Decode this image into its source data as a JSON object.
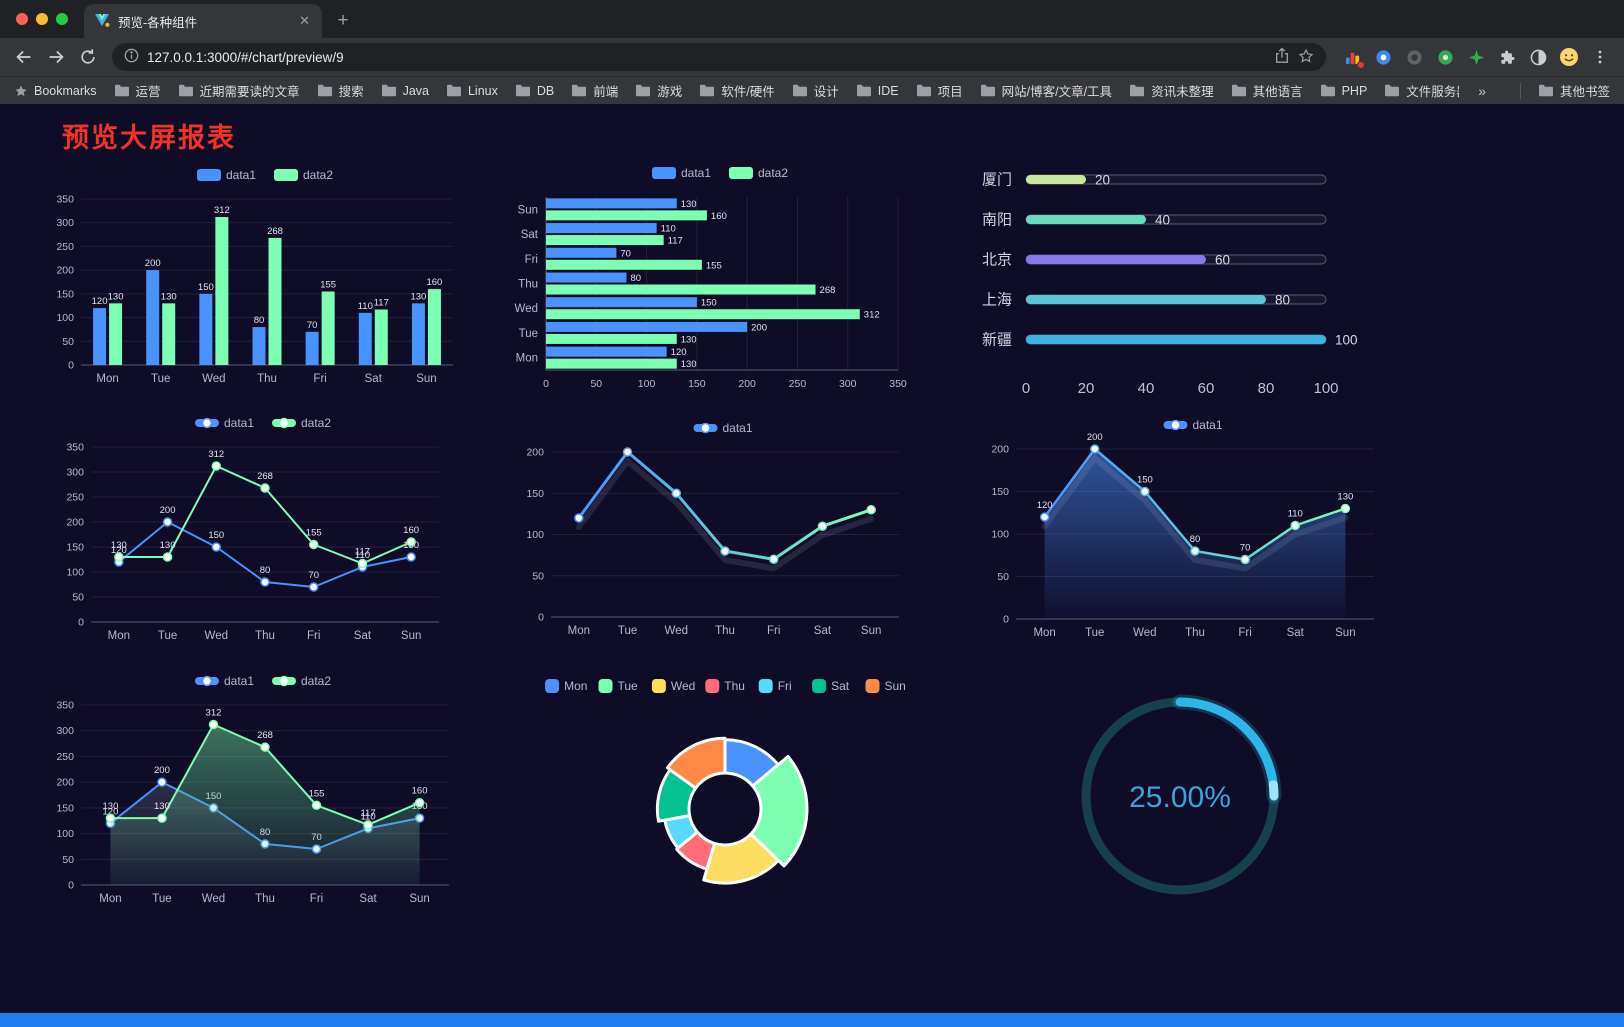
{
  "browser": {
    "tab_title": "预览-各种组件",
    "url": "127.0.0.1:3000/#/chart/preview/9",
    "traffic_lights": [
      "#ff5f57",
      "#febc2e",
      "#28c840"
    ],
    "icons": {
      "close": "✕",
      "new_tab": "+",
      "menu": "⋮"
    },
    "bookmarks_bar": {
      "first_item": "Bookmarks",
      "folders": [
        "运营",
        "近期需要读的文章",
        "搜索",
        "Java",
        "Linux",
        "DB",
        "前端",
        "游戏",
        "软件/硬件",
        "设计",
        "IDE",
        "项目",
        "网站/博客/文章/工具",
        "资讯未整理",
        "其他语言",
        "PHP",
        "文件服务器"
      ],
      "overflow": "»",
      "other": "其他书签"
    }
  },
  "page": {
    "title": "预览大屏报表",
    "title_color": "#f03328",
    "background": "#0f0c27",
    "bottom_bar_color": "#2080f0"
  },
  "chart_data": [
    {
      "type": "bar",
      "categories": [
        "Mon",
        "Tue",
        "Wed",
        "Thu",
        "Fri",
        "Sat",
        "Sun"
      ],
      "series": [
        {
          "name": "data1",
          "color": "#4992ff",
          "values": [
            120,
            200,
            150,
            80,
            70,
            110,
            130
          ]
        },
        {
          "name": "data2",
          "color": "#7cffb2",
          "values": [
            130,
            130,
            312,
            268,
            155,
            117,
            160
          ]
        }
      ],
      "ylim": [
        0,
        350
      ],
      "ytick": 50,
      "value_labels": true,
      "legend_position": "top"
    },
    {
      "type": "bar-horizontal",
      "categories": [
        "Mon",
        "Tue",
        "Wed",
        "Thu",
        "Fri",
        "Sat",
        "Sun"
      ],
      "series": [
        {
          "name": "data1",
          "color": "#4992ff",
          "values": [
            120,
            200,
            150,
            80,
            70,
            110,
            130
          ]
        },
        {
          "name": "data2",
          "color": "#7cffb2",
          "values": [
            130,
            130,
            312,
            268,
            155,
            117,
            160
          ]
        }
      ],
      "xlim": [
        0,
        350
      ],
      "xtick": 50,
      "value_labels": true,
      "legend_position": "top"
    },
    {
      "type": "progress",
      "max": 100,
      "xticks": [
        0,
        20,
        40,
        60,
        80,
        100
      ],
      "rows": [
        {
          "label": "厦门",
          "value": 20,
          "color": "#c9e89b"
        },
        {
          "label": "南阳",
          "value": 40,
          "color": "#67dcbe"
        },
        {
          "label": "北京",
          "value": 60,
          "color": "#8878e8"
        },
        {
          "label": "上海",
          "value": 80,
          "color": "#58c8d8"
        },
        {
          "label": "新疆",
          "value": 100,
          "color": "#3fb1e3"
        }
      ]
    },
    {
      "type": "line",
      "categories": [
        "Mon",
        "Tue",
        "Wed",
        "Thu",
        "Fri",
        "Sat",
        "Sun"
      ],
      "ylim": [
        0,
        350
      ],
      "ytick": 50,
      "series": [
        {
          "name": "data1",
          "color": "#4992ff",
          "values": [
            120,
            200,
            150,
            80,
            70,
            110,
            130
          ],
          "labels": true
        },
        {
          "name": "data2",
          "color": "#7cffb2",
          "values": [
            130,
            130,
            312,
            268,
            155,
            117,
            160
          ],
          "labels": true
        }
      ]
    },
    {
      "type": "line",
      "categories": [
        "Mon",
        "Tue",
        "Wed",
        "Thu",
        "Fri",
        "Sat",
        "Sun"
      ],
      "ylim": [
        0,
        200
      ],
      "ytick": 50,
      "series": [
        {
          "name": "data1",
          "color": "#4992ff",
          "gradient": [
            "#4992ff",
            "#7cffb2"
          ],
          "width": 3,
          "shadow": true,
          "values": [
            120,
            200,
            150,
            80,
            70,
            110,
            130
          ]
        }
      ]
    },
    {
      "type": "line",
      "categories": [
        "Mon",
        "Tue",
        "Wed",
        "Thu",
        "Fri",
        "Sat",
        "Sun"
      ],
      "ylim": [
        0,
        200
      ],
      "ytick": 50,
      "series": [
        {
          "name": "data1",
          "color": "#4992ff",
          "gradient": [
            "#4992ff",
            "#7cffb2"
          ],
          "width": 2.5,
          "shadow": true,
          "labels": true,
          "values": [
            120,
            200,
            150,
            80,
            70,
            110,
            130
          ],
          "area": {
            "from": "rgba(73,146,255,0.55)",
            "to": "rgba(73,146,255,0.03)"
          }
        }
      ]
    },
    {
      "type": "line",
      "categories": [
        "Mon",
        "Tue",
        "Wed",
        "Thu",
        "Fri",
        "Sat",
        "Sun"
      ],
      "ylim": [
        0,
        350
      ],
      "ytick": 50,
      "series": [
        {
          "name": "data1",
          "color": "#4992ff",
          "values": [
            120,
            200,
            150,
            80,
            70,
            110,
            130
          ],
          "labels": true,
          "area": {
            "from": "rgba(205,220,245,0.16)",
            "to": "rgba(205,220,245,0.02)"
          }
        },
        {
          "name": "data2",
          "color": "#7cffb2",
          "values": [
            130,
            130,
            312,
            268,
            155,
            117,
            160
          ],
          "labels": true,
          "area": {
            "from": "rgba(96,200,140,0.55)",
            "to": "rgba(96,200,140,0.05)"
          }
        }
      ]
    },
    {
      "type": "pie",
      "rose": true,
      "categories": [
        "Mon",
        "Tue",
        "Wed",
        "Thu",
        "Fri",
        "Sat",
        "Sun"
      ],
      "values": [
        120,
        200,
        150,
        80,
        70,
        110,
        130
      ],
      "colors": [
        "#4992ff",
        "#7cffb2",
        "#fddd60",
        "#ff6e76",
        "#58d9f9",
        "#05c091",
        "#ff8a45"
      ],
      "border_color": "#ffffff"
    },
    {
      "type": "gauge",
      "value": 25,
      "label": "25.00%",
      "color": "#2db7e8",
      "cap_color": "#9fe2fa",
      "track_color": "#17404f",
      "text_color": "#3fa0da"
    }
  ]
}
